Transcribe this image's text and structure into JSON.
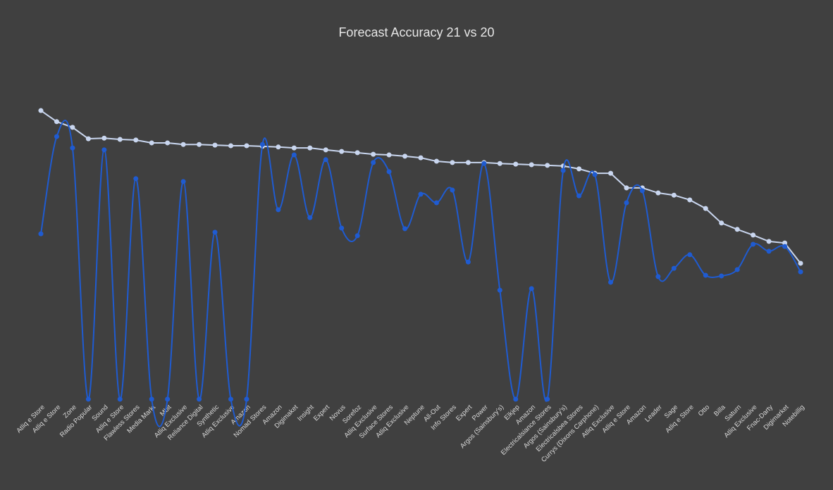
{
  "chart_data": {
    "type": "line",
    "title": "Forecast Accuracy 21 vs 20",
    "categories": [
      "Atliq e Store",
      "Atliq e Store",
      "Zone",
      "Radio Popular",
      "Sound",
      "Atliq e Store",
      "Flawless Stores",
      "Media Markt",
      "Mbit",
      "Atliq Exclusive",
      "Reliance Digital",
      "Synthetic",
      "Atliq Exclusive",
      "Amazon",
      "Nomad Stores",
      "Amazon",
      "Digimaket",
      "Insight",
      "Expert",
      "Novus",
      "Sorefoz",
      "Atliq Exclusive",
      "Surface Stores",
      "Atliq Exclusive",
      "Neptune",
      "All-Out",
      "Info Stores",
      "Expert",
      "Power",
      "Argos (Sainsbury's)",
      "Elkjep",
      "Amazon",
      "Electricalsiance Stores",
      "Argos (Sainsbury's)",
      "Electricalsbea Stores",
      "Currys (Dixons Carphone)",
      "Atliq Exclusive",
      "Atliq e Store",
      "Amazon",
      "Leader",
      "Sage",
      "Atliq e Store",
      "Otto",
      "Billa",
      "Saturn",
      "Atliq Exclusive",
      "Fnac-Darty",
      "Digimarket",
      "Notebillig"
    ],
    "series": [
      {
        "color": "#c9d6ef",
        "smooth": false,
        "values": [
          91.1,
          87.6,
          85.8,
          82.2,
          82.4,
          82.0,
          81.8,
          80.9,
          80.9,
          80.4,
          80.4,
          80.2,
          80.0,
          80.0,
          79.8,
          79.6,
          79.3,
          79.3,
          78.7,
          78.2,
          77.8,
          77.3,
          77.1,
          76.7,
          76.2,
          75.1,
          74.7,
          74.7,
          74.7,
          74.4,
          74.2,
          74.0,
          73.8,
          73.6,
          72.7,
          71.3,
          71.3,
          66.7,
          66.7,
          65.1,
          64.4,
          62.9,
          60.2,
          55.6,
          53.6,
          51.8,
          49.8,
          49.3,
          42.9
        ]
      },
      {
        "color": "#1f5bd1",
        "smooth": true,
        "values": [
          52.2,
          82.9,
          79.3,
          0,
          78.7,
          0,
          69.6,
          0,
          0,
          68.7,
          0,
          52.7,
          0,
          0,
          80.4,
          59.8,
          77.1,
          57.3,
          75.6,
          54.0,
          51.6,
          74.7,
          71.8,
          53.8,
          64.7,
          62.0,
          66.0,
          43.3,
          74.4,
          34.4,
          0,
          34.9,
          0,
          72.2,
          64.2,
          70.9,
          36.9,
          62.0,
          65.8,
          38.7,
          41.3,
          45.6,
          39.1,
          38.9,
          40.9,
          48.9,
          46.7,
          48.2,
          40.2
        ]
      }
    ],
    "ylim": [
      0,
      100
    ]
  }
}
